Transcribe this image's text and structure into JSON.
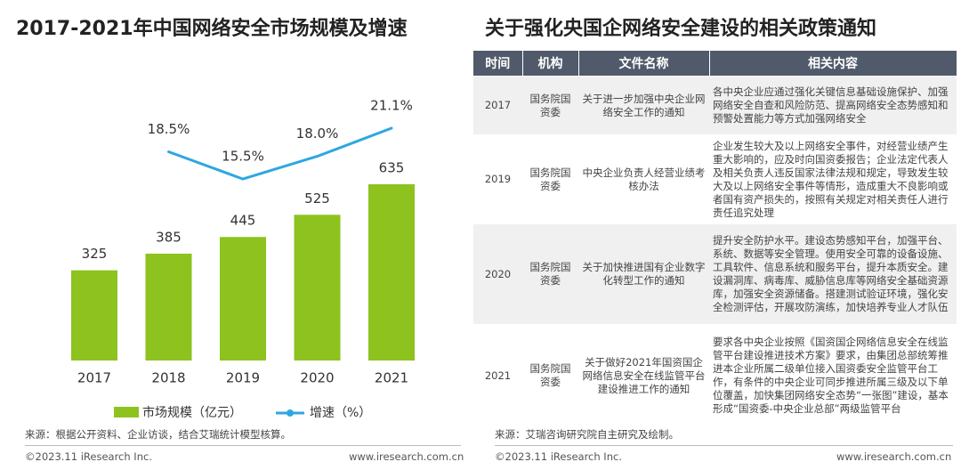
{
  "chart_data": {
    "type": "bar-line",
    "title": "2017-2021年中国网络安全市场规模及增速",
    "categories": [
      "2017",
      "2018",
      "2019",
      "2020",
      "2021"
    ],
    "series": [
      {
        "name": "市场规模（亿元）",
        "color": "#8dc21f",
        "type": "bar",
        "values": [
          325,
          385,
          445,
          525,
          635
        ]
      },
      {
        "name": "增速（%）",
        "color": "#2ea7e0",
        "type": "line",
        "values": [
          null,
          18.5,
          15.5,
          18.0,
          21.1
        ],
        "value_labels": [
          null,
          "18.5%",
          "15.5%",
          "18.0%",
          "21.1%"
        ]
      }
    ],
    "source": "来源：根据公开资料、企业访谈，结合艾瑞统计模型核算。"
  },
  "table": {
    "title": "关于强化央国企网络安全建设的相关政策通知",
    "headers": [
      "时间",
      "机构",
      "文件名称",
      "相关内容"
    ],
    "rows": [
      [
        "2017",
        "国务院国资委",
        "关于进一步加强中央企业网络安全工作的通知",
        "各中央企业应通过强化关键信息基础设施保护、加强网络安全自查和风险防范、提高网络安全态势感知和预警处置能力等方式加强网络安全"
      ],
      [
        "2019",
        "国务院国资委",
        "中央企业负责人经营业绩考核办法",
        "企业发生较大及以上网络安全事件，对经营业绩产生重大影响的，应及时向国资委报告；企业法定代表人及相关负责人违反国家法律法规和规定，导致发生较大及以上网络安全事件等情形，造成重大不良影响或者国有资产损失的，按照有关规定对相关责任人进行责任追究处理"
      ],
      [
        "2020",
        "国务院国资委",
        "关于加快推进国有企业数字化转型工作的通知",
        "提升安全防护水平。建设态势感知平台，加强平台、系统、数据等安全管理。使用安全可靠的设备设施、工具软件、信息系统和服务平台，提升本质安全。建设漏洞库、病毒库、威胁信息库等网络安全基础资源库，加强安全资源储备。搭建测试验证环境，强化安全检测评估，开展攻防演练，加快培养专业人才队伍"
      ],
      [
        "2021",
        "国务院国资委",
        "关于做好2021年国资国企网络信息安全在线监管平台建设推进工作的通知",
        "要求各中央企业按照《国资国企网络信息安全在线监管平台建设推进技术方案》要求，由集团总部统筹推进本企业所属二级单位接入国资委安全监管平台工作，有条件的中央企业可同步推进所属三级及以下单位覆盖，加快集团网络安全态势“一张图”建设，基本形成“国资委-中央企业总部”两级监管平台"
      ]
    ],
    "source": "来源：艾瑞咨询研究院自主研究及绘制。"
  },
  "footer": {
    "left": [
      "©2023.11 iResearch Inc.",
      "©2023.11 iResearch Inc."
    ],
    "right": [
      "www.iresearch.com.cn",
      "www.iresearch.com.cn"
    ]
  }
}
